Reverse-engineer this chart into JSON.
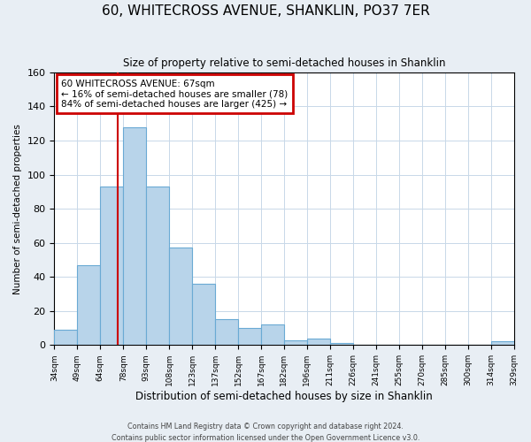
{
  "title": "60, WHITECROSS AVENUE, SHANKLIN, PO37 7ER",
  "subtitle": "Size of property relative to semi-detached houses in Shanklin",
  "xlabel": "Distribution of semi-detached houses by size in Shanklin",
  "ylabel": "Number of semi-detached properties",
  "bar_values": [
    9,
    47,
    93,
    128,
    93,
    57,
    36,
    15,
    10,
    12,
    3,
    4,
    1,
    0,
    0,
    0,
    0,
    0,
    0,
    2
  ],
  "bar_labels": [
    "34sqm",
    "49sqm",
    "64sqm",
    "78sqm",
    "93sqm",
    "108sqm",
    "123sqm",
    "137sqm",
    "152sqm",
    "167sqm",
    "182sqm",
    "196sqm",
    "211sqm",
    "226sqm",
    "241sqm",
    "255sqm",
    "270sqm",
    "285sqm",
    "300sqm",
    "314sqm",
    "329sqm"
  ],
  "bar_color": "#b8d4ea",
  "bar_edge_color": "#6aaad4",
  "bar_edge_width": 0.8,
  "vline_color": "#cc0000",
  "vline_x": 2.27,
  "annotation_title": "60 WHITECROSS AVENUE: 67sqm",
  "annotation_line1": "← 16% of semi-detached houses are smaller (78)",
  "annotation_line2": "84% of semi-detached houses are larger (425) →",
  "annotation_box_edgecolor": "#cc0000",
  "ylim": [
    0,
    160
  ],
  "yticks": [
    0,
    20,
    40,
    60,
    80,
    100,
    120,
    140,
    160
  ],
  "footer1": "Contains HM Land Registry data © Crown copyright and database right 2024.",
  "footer2": "Contains public sector information licensed under the Open Government Licence v3.0.",
  "bg_color": "#e8eef4",
  "plot_bg_color": "#ffffff"
}
